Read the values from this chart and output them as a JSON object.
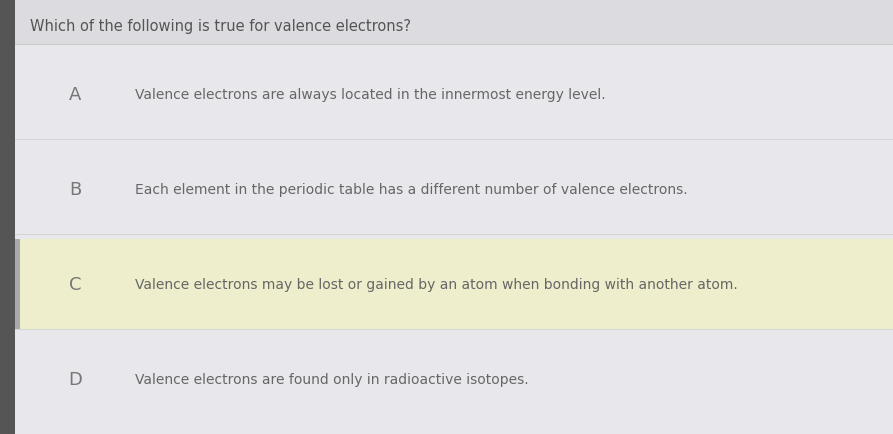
{
  "title": "Which of the following is true for valence electrons?",
  "title_color": "#555555",
  "title_fontsize": 10.5,
  "background_color": "#e8e8ec",
  "options": [
    {
      "letter": "A",
      "text": "Valence electrons are always located in the innermost energy level.",
      "highlight": false,
      "left_bar": false
    },
    {
      "letter": "B",
      "text": "Each element in the periodic table has a different number of valence electrons.",
      "highlight": false,
      "left_bar": false
    },
    {
      "letter": "C",
      "text": "Valence electrons may be lost or gained by an atom when bonding with another atom.",
      "highlight": true,
      "left_bar": true
    },
    {
      "letter": "D",
      "text": "Valence electrons are found only in radioactive isotopes.",
      "highlight": false,
      "left_bar": false
    }
  ],
  "option_bg_highlight": "#eeeecc",
  "left_bar_color": "#aaaaaa",
  "letter_color": "#777777",
  "text_color": "#666666",
  "letter_fontsize": 13,
  "text_fontsize": 10,
  "divider_color": "#cccccc"
}
